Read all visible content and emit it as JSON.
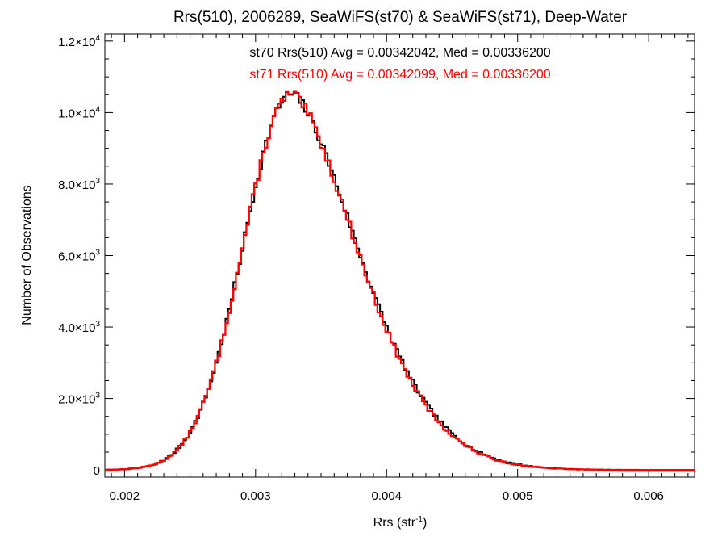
{
  "chart_data": {
    "type": "histogram-step",
    "title": "Rrs(510), 2006289, SeaWiFS(st70) & SeaWiFS(st71), Deep-Water",
    "xlabel": "Rrs (str",
    "xlabel_sup": "-1",
    "xlabel_suffix": ")",
    "ylabel": "Number of Observations",
    "xlim": [
      0.00185,
      0.00635
    ],
    "ylim": [
      -200,
      12200
    ],
    "bin_width": 2e-05,
    "xticks": [
      {
        "value": 0.002,
        "label": "0.002"
      },
      {
        "value": 0.003,
        "label": "0.003"
      },
      {
        "value": 0.004,
        "label": "0.004"
      },
      {
        "value": 0.005,
        "label": "0.005"
      },
      {
        "value": 0.006,
        "label": "0.006"
      }
    ],
    "yticks": [
      {
        "value": 0,
        "mant": "0",
        "exp": ""
      },
      {
        "value": 2000,
        "mant": "2.0×10",
        "exp": "3"
      },
      {
        "value": 4000,
        "mant": "4.0×10",
        "exp": "3"
      },
      {
        "value": 6000,
        "mant": "6.0×10",
        "exp": "3"
      },
      {
        "value": 8000,
        "mant": "8.0×10",
        "exp": "3"
      },
      {
        "value": 10000,
        "mant": "1.0×10",
        "exp": "4"
      },
      {
        "value": 12000,
        "mant": "1.2×10",
        "exp": "4"
      }
    ],
    "curve_shape": {
      "peak_x": 0.00327,
      "peak_count": 10500,
      "sigma_left": 0.00036,
      "sigma_right": 0.00056,
      "tail_exponent": 1.7
    },
    "series": [
      {
        "name": "st70",
        "color": "#000000",
        "seed": 7,
        "noise": 160,
        "offset_right": 70,
        "annotation": "st70 Rrs(510) Avg = 0.00342042, Med = 0.00336200"
      },
      {
        "name": "st71",
        "color": "#ff0000",
        "seed": 13,
        "noise": 160,
        "offset_right": 0,
        "annotation": "st71 Rrs(510) Avg = 0.00342099, Med = 0.00336200"
      }
    ]
  }
}
